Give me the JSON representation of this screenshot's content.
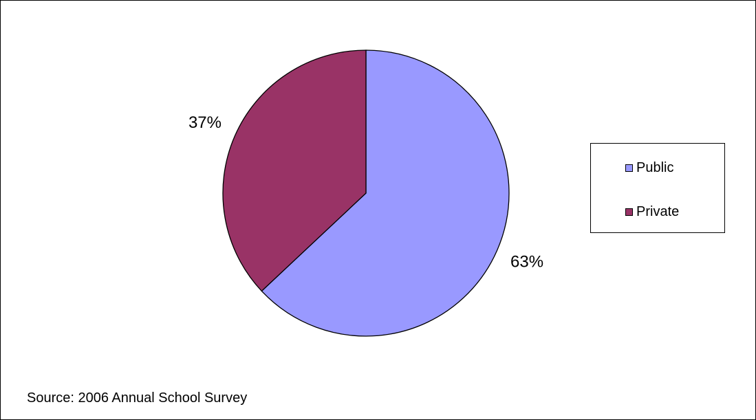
{
  "chart_data": {
    "type": "pie",
    "categories": [
      "Public",
      "Private"
    ],
    "values": [
      63,
      37
    ],
    "data_labels": [
      "63%",
      "37%"
    ],
    "colors": [
      "#9999ff",
      "#993366"
    ],
    "legend": {
      "position": "right",
      "entries": [
        "Public",
        "Private"
      ]
    }
  },
  "source_note": "Source: 2006 Annual School Survey"
}
